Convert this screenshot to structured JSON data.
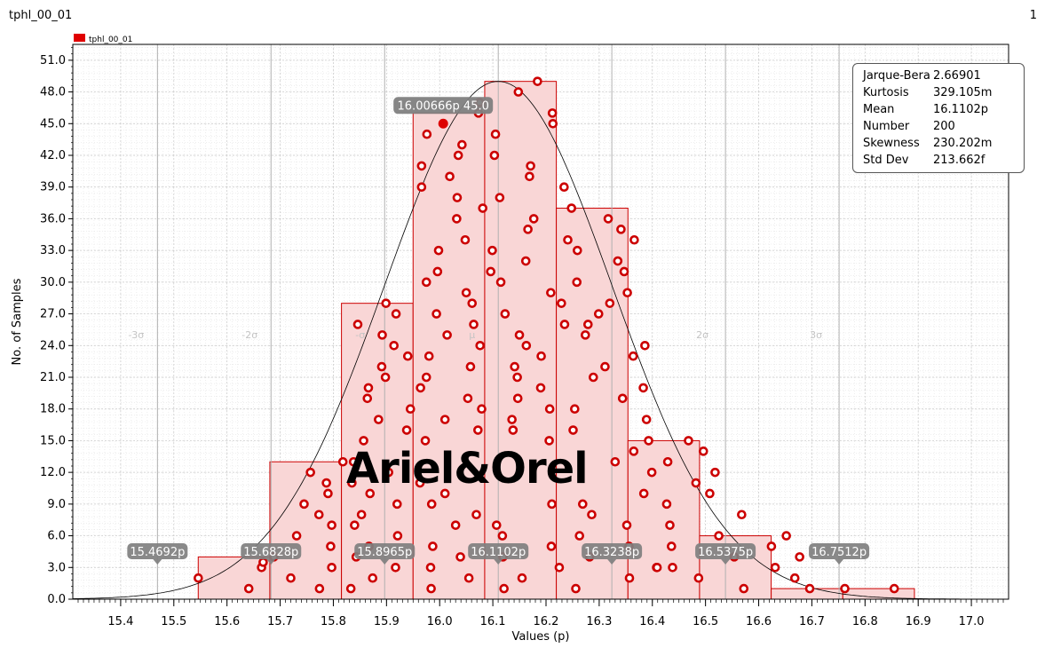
{
  "window": {
    "title": "tphl_00_01",
    "page_number": "1"
  },
  "watermark": "Ariel&Orel",
  "stats": [
    {
      "key": "Jarque-Bera",
      "value": "2.66901"
    },
    {
      "key": "Kurtosis",
      "value": "329.105m"
    },
    {
      "key": "Mean",
      "value": "16.1102p"
    },
    {
      "key": "Number",
      "value": "200"
    },
    {
      "key": "Skewness",
      "value": "230.202m"
    },
    {
      "key": "Std Dev",
      "value": "213.662f"
    }
  ],
  "colors": {
    "bar_fill": "#f9d6d6",
    "bar_stroke": "#cc0000",
    "marker": "#cc0000",
    "badge": "#7f7f7f"
  },
  "chart_data": {
    "type": "bar",
    "xlabel": "Values (p)",
    "ylabel": "No. of Samples",
    "xlim": [
      15.31,
      17.07
    ],
    "ylim": [
      0,
      52.5
    ],
    "x_ticks": [
      "15.4",
      "15.5",
      "15.6",
      "15.7",
      "15.8",
      "15.9",
      "16.0",
      "16.1",
      "16.2",
      "16.3",
      "16.4",
      "16.5",
      "16.6",
      "16.7",
      "16.8",
      "16.9",
      "17.0"
    ],
    "y_ticks": [
      "0.0",
      "3.0",
      "6.0",
      "9.0",
      "12.0",
      "15.0",
      "18.0",
      "21.0",
      "24.0",
      "27.0",
      "30.0",
      "33.0",
      "36.0",
      "39.0",
      "42.0",
      "45.0",
      "48.0",
      "51.0"
    ],
    "legend": [
      {
        "name": "tphl_00_01",
        "color": "#e00000"
      }
    ],
    "legend_position": "top-left",
    "histogram": [
      {
        "x0": 15.5459,
        "x1": 15.6806,
        "count": 4
      },
      {
        "x0": 15.6806,
        "x1": 15.8153,
        "count": 13
      },
      {
        "x0": 15.8153,
        "x1": 15.95,
        "count": 28
      },
      {
        "x0": 15.95,
        "x1": 16.0847,
        "count": 46
      },
      {
        "x0": 16.0847,
        "x1": 16.2194,
        "count": 49
      },
      {
        "x0": 16.2194,
        "x1": 16.3541,
        "count": 37
      },
      {
        "x0": 16.3541,
        "x1": 16.4888,
        "count": 15
      },
      {
        "x0": 16.4888,
        "x1": 16.6235,
        "count": 6
      },
      {
        "x0": 16.6235,
        "x1": 16.7582,
        "count": 1
      },
      {
        "x0": 16.7582,
        "x1": 16.8929,
        "count": 1
      }
    ],
    "normal_curve": {
      "mean": 16.1102,
      "std": 0.213662,
      "peak": 49
    },
    "sigma_lines": [
      {
        "label": "-3σ",
        "value": 15.4692
      },
      {
        "label": "-2σ",
        "value": 15.6828
      },
      {
        "label": "-σ",
        "value": 15.8965
      },
      {
        "label": "μ",
        "value": 16.1102
      },
      {
        "label": "σ",
        "value": 16.3238
      },
      {
        "label": "2σ",
        "value": 16.5375
      },
      {
        "label": "3σ",
        "value": 16.7512
      }
    ],
    "sigma_badges": [
      "15.4692p",
      "15.6828p",
      "15.8965p",
      "16.1102p",
      "16.3238p",
      "16.5375p",
      "16.7512p"
    ],
    "highlight": {
      "label": "16.00666p 45.0",
      "x": 16.00666,
      "y": 45.0
    },
    "points": [
      [
        15.546,
        2
      ],
      [
        15.641,
        1
      ],
      [
        15.665,
        3
      ],
      [
        15.668,
        3.5
      ],
      [
        15.688,
        4
      ],
      [
        15.72,
        2
      ],
      [
        15.731,
        6
      ],
      [
        15.745,
        9
      ],
      [
        15.757,
        12
      ],
      [
        15.773,
        8
      ],
      [
        15.774,
        1
      ],
      [
        15.787,
        11
      ],
      [
        15.79,
        10
      ],
      [
        15.795,
        5
      ],
      [
        15.797,
        3
      ],
      [
        15.797,
        7
      ],
      [
        15.818,
        13
      ],
      [
        15.833,
        1
      ],
      [
        15.835,
        11
      ],
      [
        15.838,
        13
      ],
      [
        15.84,
        7
      ],
      [
        15.843,
        4
      ],
      [
        15.846,
        26
      ],
      [
        15.853,
        8
      ],
      [
        15.857,
        15
      ],
      [
        15.864,
        19
      ],
      [
        15.866,
        20
      ],
      [
        15.867,
        5
      ],
      [
        15.869,
        10
      ],
      [
        15.874,
        2
      ],
      [
        15.885,
        17
      ],
      [
        15.891,
        22
      ],
      [
        15.892,
        25
      ],
      [
        15.898,
        21
      ],
      [
        15.899,
        28
      ],
      [
        15.904,
        12
      ],
      [
        15.914,
        24
      ],
      [
        15.917,
        3
      ],
      [
        15.918,
        27
      ],
      [
        15.92,
        9
      ],
      [
        15.921,
        6
      ],
      [
        15.938,
        16
      ],
      [
        15.94,
        23
      ],
      [
        15.945,
        18
      ],
      [
        15.963,
        11
      ],
      [
        15.964,
        20
      ],
      [
        15.966,
        39
      ],
      [
        15.966,
        41
      ],
      [
        15.973,
        15
      ],
      [
        15.975,
        21
      ],
      [
        15.975,
        30
      ],
      [
        15.976,
        44
      ],
      [
        15.98,
        23
      ],
      [
        15.983,
        3
      ],
      [
        15.984,
        1
      ],
      [
        15.985,
        9
      ],
      [
        15.987,
        5
      ],
      [
        15.994,
        27
      ],
      [
        15.996,
        31
      ],
      [
        15.998,
        33
      ],
      [
        16.01,
        17
      ],
      [
        16.01,
        10
      ],
      [
        16.014,
        25
      ],
      [
        16.019,
        40
      ],
      [
        16.03,
        7
      ],
      [
        16.032,
        36
      ],
      [
        16.033,
        38
      ],
      [
        16.035,
        42
      ],
      [
        16.039,
        4
      ],
      [
        16.042,
        43
      ],
      [
        16.048,
        34
      ],
      [
        16.05,
        29
      ],
      [
        16.053,
        19
      ],
      [
        16.055,
        2
      ],
      [
        16.058,
        22
      ],
      [
        16.061,
        28
      ],
      [
        16.064,
        26
      ],
      [
        16.069,
        8
      ],
      [
        16.072,
        16
      ],
      [
        16.073,
        46
      ],
      [
        16.075,
        47
      ],
      [
        16.076,
        24
      ],
      [
        16.079,
        18
      ],
      [
        16.081,
        37
      ],
      [
        16.096,
        31
      ],
      [
        16.099,
        33
      ],
      [
        16.103,
        42
      ],
      [
        16.105,
        44
      ],
      [
        16.107,
        7
      ],
      [
        16.113,
        38
      ],
      [
        16.115,
        30
      ],
      [
        16.118,
        6
      ],
      [
        16.119,
        4
      ],
      [
        16.121,
        1
      ],
      [
        16.123,
        27
      ],
      [
        16.136,
        17
      ],
      [
        16.138,
        16
      ],
      [
        16.141,
        22
      ],
      [
        16.146,
        21
      ],
      [
        16.147,
        19
      ],
      [
        16.148,
        48
      ],
      [
        16.15,
        25
      ],
      [
        16.155,
        2
      ],
      [
        16.162,
        32
      ],
      [
        16.163,
        24
      ],
      [
        16.166,
        35
      ],
      [
        16.169,
        40
      ],
      [
        16.171,
        41
      ],
      [
        16.177,
        36
      ],
      [
        16.184,
        49
      ],
      [
        16.19,
        20
      ],
      [
        16.191,
        23
      ],
      [
        16.206,
        15
      ],
      [
        16.207,
        18
      ],
      [
        16.209,
        29
      ],
      [
        16.21,
        5
      ],
      [
        16.211,
        9
      ],
      [
        16.212,
        46
      ],
      [
        16.213,
        45
      ],
      [
        16.225,
        3
      ],
      [
        16.229,
        28
      ],
      [
        16.234,
        39
      ],
      [
        16.235,
        26
      ],
      [
        16.241,
        34
      ],
      [
        16.248,
        37
      ],
      [
        16.251,
        16
      ],
      [
        16.254,
        18
      ],
      [
        16.256,
        1
      ],
      [
        16.258,
        30
      ],
      [
        16.259,
        33
      ],
      [
        16.263,
        6
      ],
      [
        16.269,
        9
      ],
      [
        16.274,
        25
      ],
      [
        16.279,
        26
      ],
      [
        16.282,
        4
      ],
      [
        16.286,
        8
      ],
      [
        16.289,
        21
      ],
      [
        16.299,
        27
      ],
      [
        16.311,
        22
      ],
      [
        16.317,
        36
      ],
      [
        16.32,
        28
      ],
      [
        16.33,
        13
      ],
      [
        16.335,
        32
      ],
      [
        16.341,
        35
      ],
      [
        16.344,
        19
      ],
      [
        16.347,
        31
      ],
      [
        16.352,
        7
      ],
      [
        16.353,
        29
      ],
      [
        16.356,
        5
      ],
      [
        16.357,
        2
      ],
      [
        16.364,
        23
      ],
      [
        16.365,
        14
      ],
      [
        16.366,
        34
      ],
      [
        16.383,
        20
      ],
      [
        16.384,
        10
      ],
      [
        16.386,
        24
      ],
      [
        16.389,
        17
      ],
      [
        16.393,
        15
      ],
      [
        16.399,
        12
      ],
      [
        16.408,
        3
      ],
      [
        16.409,
        3
      ],
      [
        16.427,
        9
      ],
      [
        16.429,
        13
      ],
      [
        16.433,
        7
      ],
      [
        16.436,
        5
      ],
      [
        16.438,
        3
      ],
      [
        16.468,
        15
      ],
      [
        16.482,
        11
      ],
      [
        16.487,
        2
      ],
      [
        16.496,
        14
      ],
      [
        16.508,
        10
      ],
      [
        16.518,
        12
      ],
      [
        16.525,
        6
      ],
      [
        16.554,
        4
      ],
      [
        16.568,
        8
      ],
      [
        16.572,
        1
      ],
      [
        16.624,
        5
      ],
      [
        16.631,
        3
      ],
      [
        16.652,
        6
      ],
      [
        16.668,
        2
      ],
      [
        16.677,
        4
      ],
      [
        16.696,
        1
      ],
      [
        16.762,
        1
      ],
      [
        16.855,
        1
      ]
    ]
  }
}
